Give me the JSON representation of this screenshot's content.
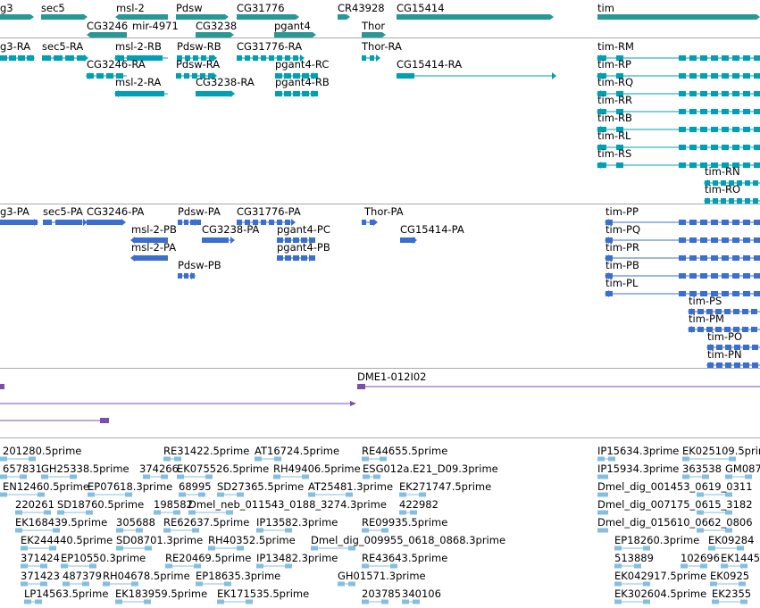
{
  "colors": {
    "gene": "#2a9797",
    "transcript": "#00a0b4",
    "protein": "#3a6fcf",
    "clone": "#7a4fb0",
    "est": "#84bfe0",
    "separator": "#aaaaaa"
  },
  "tracks": {
    "genes": [
      "g3",
      "sec5",
      "msl-2",
      "Pdsw",
      "CG31776",
      "CR43928",
      "CG15414",
      "tim",
      "CG3246",
      "mir-4971",
      "CG3238",
      "pgant4",
      "Thor"
    ],
    "transcripts": [
      "g3-RA",
      "sec5-RA",
      "msl-2-RB",
      "Pdsw-RB",
      "CG31776-RA",
      "Thor-RA",
      "CG3246-RA",
      "Pdsw-RA",
      "pgant4-RC",
      "CG15414-RA",
      "msl-2-RA",
      "CG3238-RA",
      "pgant4-RB",
      "tim-RM",
      "tim-RP",
      "tim-RQ",
      "tim-RR",
      "tim-RB",
      "tim-RL",
      "tim-RS",
      "tim-RN",
      "tim-RO"
    ],
    "proteins": [
      "g3-PA",
      "sec5-PA",
      "CG3246-PA",
      "Pdsw-PA",
      "CG31776-PA",
      "Thor-PA",
      "msl-2-PB",
      "CG3238-PA",
      "pgant4-PC",
      "CG15414-PA",
      "msl-2-PA",
      "pgant4-PB",
      "Pdsw-PB",
      "tim-PP",
      "tim-PQ",
      "tim-PR",
      "tim-PB",
      "tim-PL",
      "tim-PS",
      "tim-PM",
      "tim-PO",
      "tim-PN"
    ],
    "clones": [
      "DME1-012I02"
    ],
    "ests": [
      "201280.5prime",
      "RE31422.5prime",
      "AT16724.5prime",
      "RE44655.5prime",
      "IP15634.3prime",
      "EK025109.5prime",
      "657831",
      "GH25338.5prime",
      "374266",
      "EK075526.5prime",
      "RH49406.5prime",
      "ESG012a.E21_D09.3prime",
      "IP15934.3prime",
      "363538",
      "GM087",
      "EN12460.5prime",
      "EP07618.3prime",
      "68995",
      "SD27365.5prime",
      "AT25481.3prime",
      "EK271747.5prime",
      "Dmel_dig_001453_0619_0311",
      "220261",
      "SD18760.5prime",
      "198582",
      "Dmel_neb_011543_0188_3274.3prime",
      "422982",
      "Dmel_dig_007175_0615_3182",
      "EK168439.5prime",
      "305688",
      "RE62637.5prime",
      "IP13582.3prime",
      "RE09935.5prime",
      "Dmel_dig_015610_0662_0806",
      "EK244440.5prime",
      "SD08701.3prime",
      "RH40352.5prime",
      "Dmel_dig_009955_0618_0868.3prime",
      "EP18260.3prime",
      "EK09284",
      "371424",
      "EP10550.3prime",
      "RE20469.5prime",
      "IP13482.3prime",
      "RE43643.5prime",
      "513889",
      "102696",
      "EK1445",
      "371423",
      "487379",
      "RH04678.5prime",
      "EP18635.3prime",
      "GH01571.3prime",
      "EK042917.5prime",
      "EK0925",
      "LP14563.5prime",
      "EK183959.5prime",
      "EK171535.5prime",
      "203785",
      "340106",
      "EK302604.5prime",
      "EK2355"
    ]
  }
}
